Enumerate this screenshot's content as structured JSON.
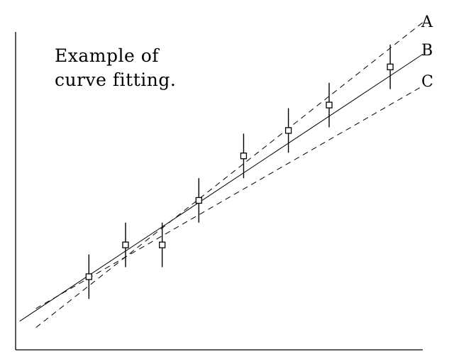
{
  "chart_data": {
    "type": "scatter",
    "title_lines": [
      "Example of",
      "curve fitting."
    ],
    "xlabel": "",
    "ylabel": "",
    "xlim": [
      0,
      100
    ],
    "ylim": [
      0,
      100
    ],
    "grid": false,
    "points": [
      {
        "x": 18,
        "y": 23,
        "err": 7
      },
      {
        "x": 27,
        "y": 33,
        "err": 7
      },
      {
        "x": 36,
        "y": 33,
        "err": 7
      },
      {
        "x": 45,
        "y": 47,
        "err": 7
      },
      {
        "x": 56,
        "y": 61,
        "err": 7
      },
      {
        "x": 67,
        "y": 69,
        "err": 7
      },
      {
        "x": 77,
        "y": 77,
        "err": 7
      },
      {
        "x": 92,
        "y": 89,
        "err": 7
      }
    ],
    "fits": [
      {
        "label": "A",
        "style": "dashed",
        "x": [
          5,
          100
        ],
        "y": [
          7,
          103
        ]
      },
      {
        "label": "B",
        "style": "solid",
        "x": [
          1,
          100
        ],
        "y": [
          9,
          93
        ]
      },
      {
        "label": "C",
        "style": "dashed",
        "x": [
          5,
          100
        ],
        "y": [
          13,
          83
        ]
      }
    ]
  }
}
